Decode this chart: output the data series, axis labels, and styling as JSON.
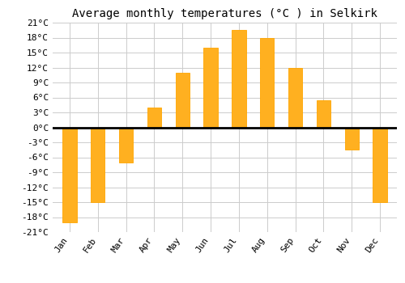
{
  "title": "Average monthly temperatures (°C ) in Selkirk",
  "months": [
    "Jan",
    "Feb",
    "Mar",
    "Apr",
    "May",
    "Jun",
    "Jul",
    "Aug",
    "Sep",
    "Oct",
    "Nov",
    "Dec"
  ],
  "values": [
    -19,
    -15,
    -7,
    4,
    11,
    16,
    19.5,
    18,
    12,
    5.5,
    -4.5,
    -15
  ],
  "bar_color_top": "#FFC020",
  "bar_color_bottom": "#FF9900",
  "bar_edge_color": "#888866",
  "bar_width": 0.5,
  "ylim": [
    -21,
    21
  ],
  "yticks": [
    -21,
    -18,
    -15,
    -12,
    -9,
    -6,
    -3,
    0,
    3,
    6,
    9,
    12,
    15,
    18,
    21
  ],
  "grid_color": "#cccccc",
  "background_color": "#ffffff",
  "title_fontsize": 10,
  "tick_fontsize": 8,
  "font_family": "monospace",
  "figsize": [
    5.0,
    3.5
  ],
  "dpi": 100
}
